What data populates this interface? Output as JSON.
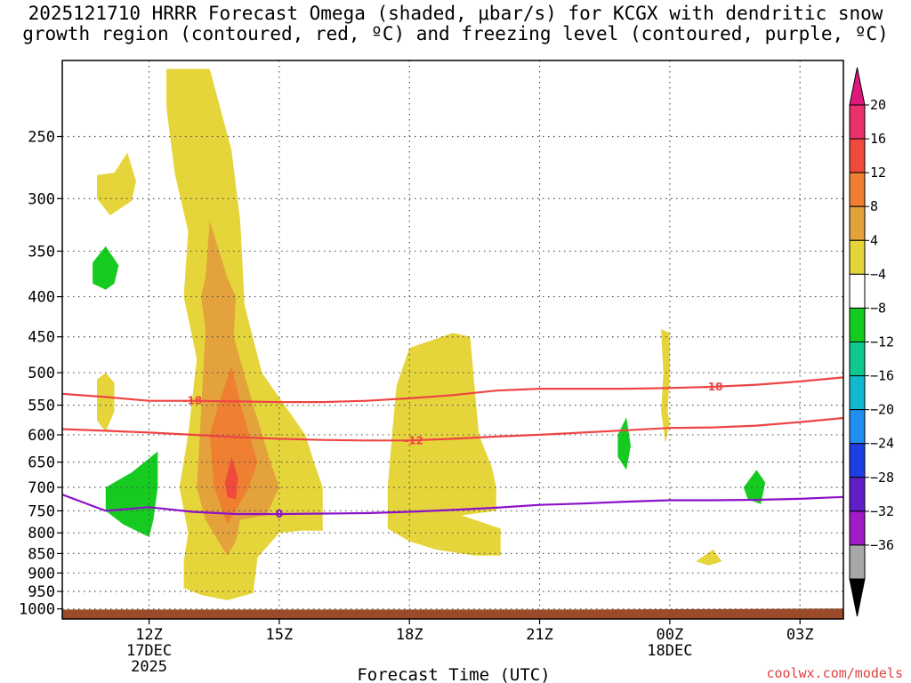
{
  "title": {
    "line1": "2025121710 HRRR Forecast Omega (shaded, μbar/s) for KCGX with dendritic snow",
    "line2": "growth region (contoured, red, ºC) and freezing level (contoured, purple, ºC)"
  },
  "credit": "coolwx.com/models",
  "chart_data": {
    "type": "time-height contour",
    "xlabel": "Forecast Time (UTC)",
    "x_range_hours_from_12Z": [
      -2.0,
      16.0
    ],
    "x_ticks": [
      {
        "hours": 0,
        "label": "12Z",
        "sub1": "17DEC",
        "sub2": "2025"
      },
      {
        "hours": 3,
        "label": "15Z",
        "sub1": "",
        "sub2": ""
      },
      {
        "hours": 6,
        "label": "18Z",
        "sub1": "",
        "sub2": ""
      },
      {
        "hours": 9,
        "label": "21Z",
        "sub1": "",
        "sub2": ""
      },
      {
        "hours": 12,
        "label": "00Z",
        "sub1": "18DEC",
        "sub2": ""
      },
      {
        "hours": 15,
        "label": "03Z",
        "sub1": "",
        "sub2": ""
      }
    ],
    "y_ticks_hPa": [
      250,
      300,
      350,
      400,
      450,
      500,
      550,
      600,
      650,
      700,
      750,
      800,
      850,
      900,
      950,
      1000
    ],
    "y_range_hPa": [
      200,
      1030
    ],
    "grid": true,
    "colorbar": {
      "labels": [
        "20",
        "16",
        "12",
        "8",
        "4",
        "−4",
        "−8",
        "−12",
        "−16",
        "−20",
        "−24",
        "−28",
        "−32",
        "−36"
      ],
      "colors": [
        "#e8316a",
        "#f04a3c",
        "#ef7f31",
        "#e3a23c",
        "#e6d53a",
        "#ffffff",
        "#15cb20",
        "#0ec88e",
        "#11b8d0",
        "#1f8ef0",
        "#1d3ee0",
        "#5f1ec7",
        "#a21ac8",
        "#a8a8a8",
        "#000000"
      ],
      "top_arrow_color": "#e0177b",
      "bottom_arrow_color": "#000000"
    },
    "series": [
      {
        "name": "-18",
        "color": "#ee4444",
        "x": [
          -2.0,
          -1.0,
          0.0,
          1.0,
          2.0,
          3.0,
          4.0,
          5.0,
          6.0,
          7.0,
          8.0,
          9.0,
          10.0,
          11.0,
          12.0,
          13.0,
          14.0,
          15.0,
          16.0
        ],
        "y": [
          532,
          537,
          543,
          543,
          544,
          545,
          545,
          543,
          539,
          534,
          527,
          524,
          524,
          524,
          523,
          521,
          518,
          513,
          507
        ]
      },
      {
        "name": "-12",
        "color": "#ee4444",
        "x": [
          -2.0,
          -1.0,
          0.0,
          1.0,
          2.0,
          3.0,
          4.0,
          5.0,
          6.0,
          7.0,
          8.0,
          9.0,
          10.0,
          11.0,
          12.0,
          13.0,
          14.0,
          15.0,
          16.0
        ],
        "y": [
          590,
          593,
          596,
          600,
          604,
          607,
          609,
          610,
          610,
          607,
          603,
          600,
          596,
          592,
          588,
          587,
          584,
          578,
          571
        ]
      },
      {
        "name": "0",
        "color": "#8b10c8",
        "x": [
          -2.0,
          -1.0,
          0.0,
          1.0,
          2.0,
          3.0,
          4.0,
          5.0,
          6.0,
          7.0,
          8.0,
          9.0,
          10.0,
          11.0,
          12.0,
          13.0,
          14.0,
          15.0,
          16.0
        ],
        "y": [
          715,
          750,
          742,
          752,
          757,
          757,
          756,
          755,
          752,
          748,
          743,
          737,
          734,
          730,
          727,
          727,
          726,
          724,
          720
        ]
      }
    ],
    "contour_labels": [
      {
        "text": "-18",
        "hours": 1.0,
        "hPa": 543,
        "color": "#ee4444"
      },
      {
        "text": "-12",
        "hours": 6.1,
        "hPa": 610,
        "color": "#ee4444"
      },
      {
        "text": "-18",
        "hours": 13.0,
        "hPa": 521,
        "color": "#ee4444"
      },
      {
        "text": "0",
        "hours": 3.0,
        "hPa": 757,
        "color": "#8b10c8"
      }
    ],
    "shaded_regions": [
      {
        "level": "4 to 8",
        "color": "#e6d53a",
        "points": [
          [
            -0.8,
            278
          ],
          [
            -0.5,
            262
          ],
          [
            -0.3,
            285
          ],
          [
            -0.4,
            302
          ],
          [
            -0.9,
            315
          ],
          [
            -1.2,
            300
          ],
          [
            -1.2,
            280
          ]
        ]
      },
      {
        "level": "-8 to -4",
        "color": "#15cb20",
        "points": [
          [
            -1.3,
            362
          ],
          [
            -1.0,
            345
          ],
          [
            -0.7,
            365
          ],
          [
            -0.8,
            385
          ],
          [
            -1.0,
            392
          ],
          [
            -1.3,
            385
          ]
        ]
      },
      {
        "level": "4 to 8",
        "color": "#e6d53a",
        "points": [
          [
            -1.2,
            510
          ],
          [
            -1.0,
            500
          ],
          [
            -0.8,
            515
          ],
          [
            -0.8,
            560
          ],
          [
            -1.0,
            595
          ],
          [
            -1.2,
            575
          ]
        ]
      },
      {
        "level": "-8 to -4",
        "color": "#15cb20",
        "points": [
          [
            -1.0,
            700
          ],
          [
            -0.4,
            670
          ],
          [
            0.2,
            630
          ],
          [
            0.2,
            700
          ],
          [
            0.1,
            770
          ],
          [
            0.0,
            810
          ],
          [
            -0.6,
            780
          ],
          [
            -1.0,
            750
          ]
        ]
      },
      {
        "level": "4 to 8",
        "color": "#e6d53a",
        "points": [
          [
            0.4,
            205
          ],
          [
            1.4,
            205
          ],
          [
            1.9,
            260
          ],
          [
            2.1,
            320
          ],
          [
            2.2,
            410
          ],
          [
            2.6,
            500
          ],
          [
            3.6,
            600
          ],
          [
            3.8,
            650
          ],
          [
            4.0,
            700
          ],
          [
            4.0,
            795
          ],
          [
            3.5,
            795
          ],
          [
            3.0,
            800
          ],
          [
            2.5,
            860
          ],
          [
            2.4,
            955
          ],
          [
            1.8,
            975
          ],
          [
            1.2,
            960
          ],
          [
            0.8,
            940
          ],
          [
            0.8,
            870
          ],
          [
            0.9,
            800
          ],
          [
            0.7,
            700
          ],
          [
            0.9,
            600
          ],
          [
            1.1,
            480
          ],
          [
            0.8,
            400
          ],
          [
            0.9,
            330
          ],
          [
            0.6,
            280
          ],
          [
            0.4,
            230
          ]
        ]
      },
      {
        "level": "4 to 8",
        "color": "#e6d53a",
        "points": [
          [
            5.7,
            520
          ],
          [
            6.0,
            465
          ],
          [
            7.0,
            445
          ],
          [
            7.4,
            450
          ],
          [
            7.6,
            600
          ],
          [
            7.9,
            660
          ],
          [
            8.0,
            700
          ],
          [
            8.0,
            750
          ],
          [
            7.2,
            760
          ],
          [
            8.1,
            790
          ],
          [
            8.1,
            855
          ],
          [
            7.5,
            855
          ],
          [
            6.6,
            840
          ],
          [
            6.0,
            820
          ],
          [
            5.5,
            790
          ],
          [
            5.5,
            700
          ],
          [
            5.6,
            600
          ]
        ]
      },
      {
        "level": "4 to 8",
        "color": "#e6d53a",
        "points": [
          [
            11.8,
            440
          ],
          [
            12.0,
            445
          ],
          [
            12.0,
            500
          ],
          [
            11.95,
            560
          ],
          [
            12.0,
            580
          ],
          [
            11.9,
            615
          ],
          [
            11.8,
            560
          ],
          [
            11.85,
            500
          ]
        ]
      },
      {
        "level": "4 to 8",
        "color": "#e6d53a",
        "points": [
          [
            12.6,
            870
          ],
          [
            13.0,
            840
          ],
          [
            13.2,
            870
          ],
          [
            12.9,
            880
          ]
        ]
      },
      {
        "level": "-8 to -4",
        "color": "#15cb20",
        "points": [
          [
            10.8,
            600
          ],
          [
            11.0,
            570
          ],
          [
            11.1,
            620
          ],
          [
            11.0,
            665
          ],
          [
            10.8,
            640
          ]
        ]
      },
      {
        "level": "-8 to -4",
        "color": "#15cb20",
        "points": [
          [
            13.7,
            700
          ],
          [
            14.0,
            665
          ],
          [
            14.2,
            690
          ],
          [
            14.1,
            735
          ],
          [
            13.8,
            725
          ]
        ]
      },
      {
        "level": "8 to 12",
        "color": "#e3a23c",
        "points": [
          [
            1.4,
            320
          ],
          [
            1.8,
            378
          ],
          [
            2.0,
            400
          ],
          [
            1.95,
            450
          ],
          [
            2.4,
            550
          ],
          [
            2.8,
            650
          ],
          [
            3.0,
            700
          ],
          [
            2.7,
            760
          ],
          [
            2.1,
            770
          ],
          [
            2.0,
            820
          ],
          [
            1.8,
            855
          ],
          [
            1.6,
            820
          ],
          [
            1.3,
            770
          ],
          [
            1.1,
            700
          ],
          [
            1.2,
            560
          ],
          [
            1.3,
            440
          ],
          [
            1.2,
            400
          ],
          [
            1.3,
            378
          ]
        ]
      },
      {
        "level": "12 to 16",
        "color": "#ef7f31",
        "points": [
          [
            1.9,
            490
          ],
          [
            2.15,
            560
          ],
          [
            2.5,
            650
          ],
          [
            2.3,
            700
          ],
          [
            2.0,
            750
          ],
          [
            1.8,
            780
          ],
          [
            1.5,
            700
          ],
          [
            1.4,
            600
          ],
          [
            1.6,
            550
          ]
        ]
      },
      {
        "level": "16 to 20",
        "color": "#f04a3c",
        "points": [
          [
            1.9,
            640
          ],
          [
            2.05,
            680
          ],
          [
            2.0,
            725
          ],
          [
            1.8,
            720
          ],
          [
            1.75,
            690
          ]
        ]
      }
    ],
    "surface": {
      "name": "ground",
      "color": "#9b4b29",
      "top_hPa": [
        1002,
        1002,
        1002,
        1002,
        1002,
        1002,
        1000,
        999
      ],
      "x": [
        -2.0,
        0.0,
        2.0,
        4.0,
        6.0,
        10.0,
        14.0,
        16.0
      ]
    }
  }
}
